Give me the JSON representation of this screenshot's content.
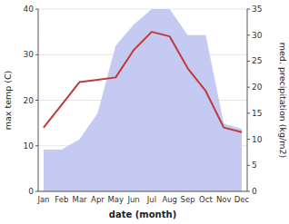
{
  "chart_data": {
    "type": "line",
    "categories": [
      "Jan",
      "Feb",
      "Mar",
      "Apr",
      "May",
      "Jun",
      "Jul",
      "Aug",
      "Sep",
      "Oct",
      "Nov",
      "Dec"
    ],
    "series": [
      {
        "type": "area",
        "axis": "y2",
        "color": "#c5caf2",
        "values": [
          8,
          8,
          10,
          15,
          28,
          32,
          35,
          35,
          30,
          30,
          13,
          12
        ]
      },
      {
        "type": "line",
        "color": "#c0393b",
        "values": [
          14,
          19,
          24,
          24.5,
          25,
          31,
          35,
          34,
          27,
          22,
          14,
          13
        ]
      }
    ],
    "xlabel": "date (month)",
    "ylabel": "max temp (C)",
    "y2label": "med. precipitation (kg/m2)",
    "ylim": [
      0,
      40
    ],
    "yticks": [
      0,
      10,
      20,
      30,
      40
    ],
    "y2lim": [
      0,
      35
    ],
    "y2ticks": [
      0,
      5,
      10,
      15,
      20,
      25,
      30,
      35
    ],
    "grid": true
  }
}
